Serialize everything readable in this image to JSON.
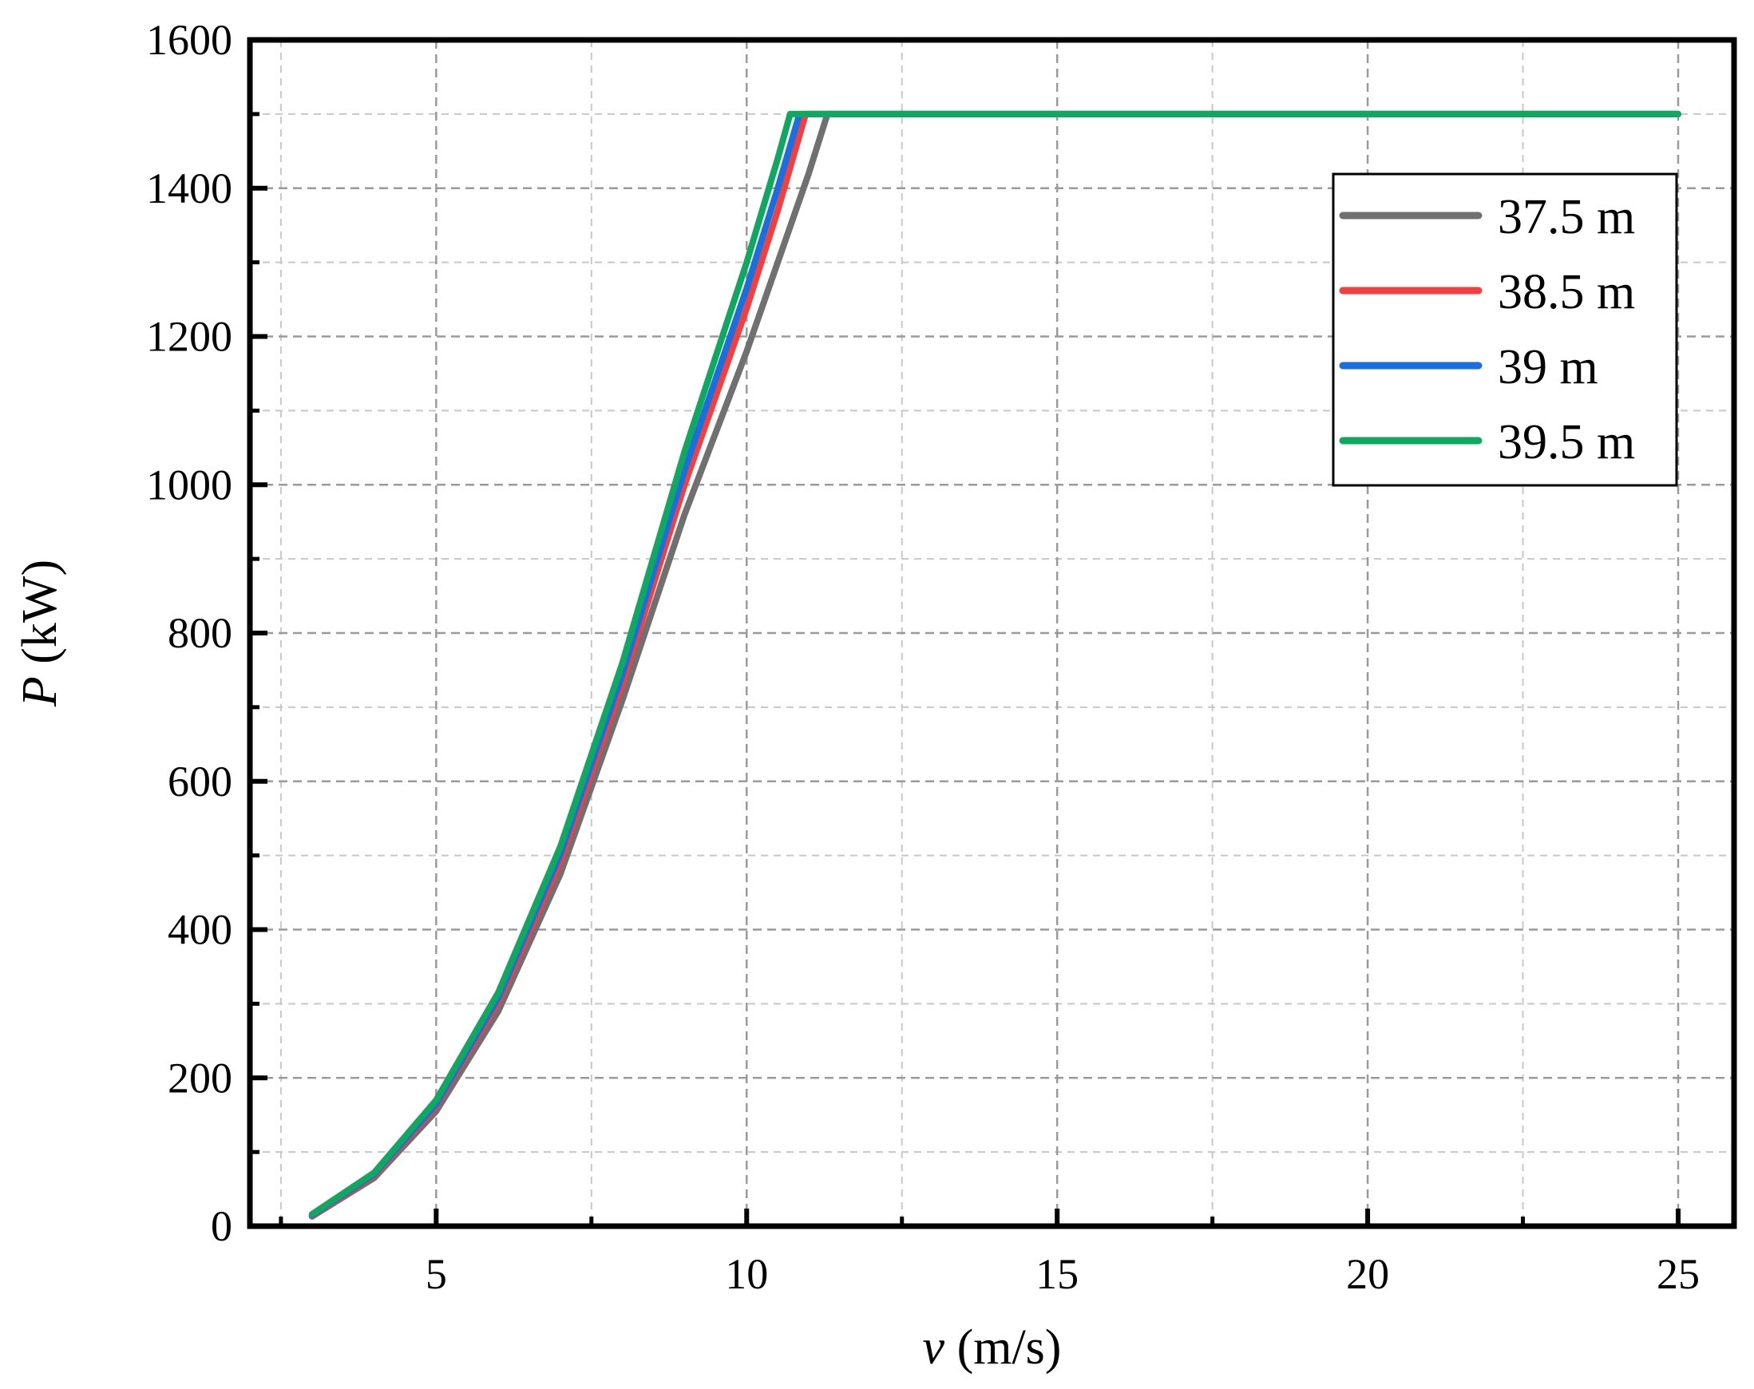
{
  "chart_data": {
    "type": "line",
    "title": "",
    "xlabel": {
      "symbol": "v",
      "unit": " (m/s)"
    },
    "ylabel": {
      "symbol": "P",
      "unit": " (kW)"
    },
    "xlim": [
      2,
      25.9
    ],
    "ylim": [
      0,
      1600
    ],
    "x_major_ticks": [
      5,
      10,
      15,
      20,
      25
    ],
    "x_minor_ticks": [
      2.5,
      7.5,
      12.5,
      17.5,
      22.5
    ],
    "y_major_ticks": [
      0,
      200,
      400,
      600,
      800,
      1000,
      1200,
      1400,
      1600
    ],
    "y_minor_ticks": [
      100,
      300,
      500,
      700,
      900,
      1100,
      1300,
      1500
    ],
    "grid": true,
    "legend_position": "top-right",
    "series": [
      {
        "name": "37.5 m",
        "color": "#707070",
        "x": [
          3,
          4,
          5,
          6,
          7,
          8,
          9,
          10,
          10.5,
          11,
          11.3,
          12,
          15,
          20,
          25
        ],
        "y": [
          13,
          65,
          155,
          290,
          475,
          710,
          960,
          1180,
          1300,
          1420,
          1500,
          1500,
          1500,
          1500,
          1500
        ]
      },
      {
        "name": "38.5 m",
        "color": "#f04040",
        "x": [
          3,
          4,
          5,
          6,
          7,
          8,
          9,
          10,
          10.5,
          10.95,
          12,
          15,
          20,
          25
        ],
        "y": [
          14,
          68,
          162,
          302,
          492,
          732,
          1000,
          1238,
          1370,
          1500,
          1500,
          1500,
          1500,
          1500
        ]
      },
      {
        "name": "39 m",
        "color": "#1a6ee0",
        "x": [
          3,
          4,
          5,
          6,
          7,
          8,
          9,
          10,
          10.5,
          10.85,
          12,
          15,
          20,
          25
        ],
        "y": [
          15,
          70,
          165,
          308,
          502,
          745,
          1020,
          1265,
          1400,
          1500,
          1500,
          1500,
          1500,
          1500
        ]
      },
      {
        "name": "39.5 m",
        "color": "#10a860",
        "x": [
          3,
          4,
          5,
          6,
          7,
          8,
          9,
          10,
          10.5,
          10.7,
          12,
          15,
          20,
          25
        ],
        "y": [
          16,
          72,
          170,
          315,
          512,
          760,
          1045,
          1300,
          1440,
          1500,
          1500,
          1500,
          1500,
          1500
        ]
      }
    ]
  }
}
